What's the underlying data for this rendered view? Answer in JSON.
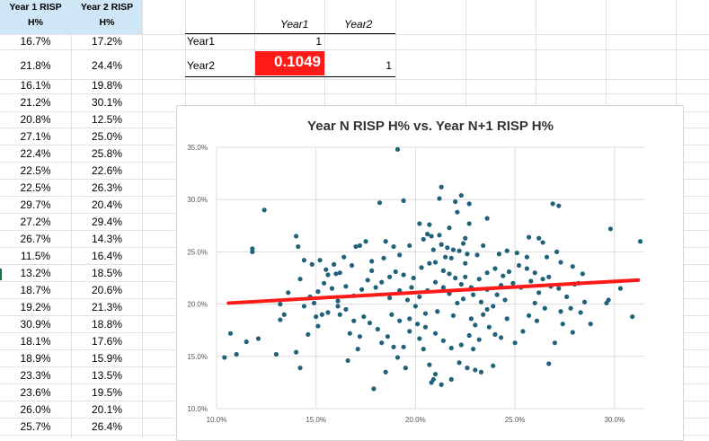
{
  "spreadsheet": {
    "headers": {
      "col_a": [
        "Year 1 RISP",
        "H%"
      ],
      "col_b": [
        "Year 2 RISP",
        "H%"
      ]
    },
    "rows": [
      [
        "16.7%",
        "17.2%"
      ],
      [
        "21.8%",
        "24.4%"
      ],
      [
        "16.1%",
        "19.8%"
      ],
      [
        "21.2%",
        "30.1%"
      ],
      [
        "20.8%",
        "12.5%"
      ],
      [
        "27.1%",
        "25.0%"
      ],
      [
        "22.4%",
        "25.8%"
      ],
      [
        "22.5%",
        "22.6%"
      ],
      [
        "22.5%",
        "26.3%"
      ],
      [
        "29.7%",
        "20.4%"
      ],
      [
        "27.2%",
        "29.4%"
      ],
      [
        "26.7%",
        "14.3%"
      ],
      [
        "11.5%",
        "16.4%"
      ],
      [
        "13.2%",
        "18.5%"
      ],
      [
        "18.7%",
        "20.6%"
      ],
      [
        "19.2%",
        "21.3%"
      ],
      [
        "30.9%",
        "18.8%"
      ],
      [
        "18.1%",
        "17.6%"
      ],
      [
        "18.9%",
        "15.9%"
      ],
      [
        "23.3%",
        "13.5%"
      ],
      [
        "23.6%",
        "19.5%"
      ],
      [
        "26.0%",
        "20.1%"
      ],
      [
        "25.7%",
        "26.4%"
      ]
    ]
  },
  "correlation_table": {
    "col_headers": [
      "Year1",
      "Year2"
    ],
    "row_labels": [
      "Year1",
      "Year2"
    ],
    "year1_year1": "1",
    "year2_year1": "0.1049",
    "year2_year2": "1"
  },
  "chart_data": {
    "type": "scatter",
    "title": "Year N RISP H% vs. Year N+1 RISP H%",
    "xlabel": "",
    "ylabel": "",
    "xlim": [
      10.0,
      31.5
    ],
    "ylim": [
      10.0,
      35.0
    ],
    "x_ticks": [
      "10.0%",
      "15.0%",
      "20.0%",
      "25.0%",
      "30.0%"
    ],
    "y_ticks": [
      "10.0%",
      "15.0%",
      "20.0%",
      "25.0%",
      "30.0%",
      "35.0%"
    ],
    "grid": true,
    "point_color": "#20627a",
    "trendline": {
      "x": [
        10.6,
        31.2
      ],
      "y": [
        20.1,
        22.3
      ],
      "color": "#ff1a1a"
    },
    "points": [
      [
        16.7,
        17.2
      ],
      [
        21.8,
        24.4
      ],
      [
        16.1,
        19.8
      ],
      [
        21.2,
        30.1
      ],
      [
        20.8,
        12.5
      ],
      [
        27.1,
        25.0
      ],
      [
        22.4,
        25.8
      ],
      [
        22.5,
        22.6
      ],
      [
        22.5,
        26.3
      ],
      [
        29.7,
        20.4
      ],
      [
        27.2,
        29.4
      ],
      [
        26.7,
        14.3
      ],
      [
        11.5,
        16.4
      ],
      [
        13.2,
        18.5
      ],
      [
        18.7,
        20.6
      ],
      [
        19.2,
        21.3
      ],
      [
        30.9,
        18.8
      ],
      [
        18.1,
        17.6
      ],
      [
        18.9,
        15.9
      ],
      [
        23.3,
        13.5
      ],
      [
        23.6,
        19.5
      ],
      [
        26.0,
        20.1
      ],
      [
        25.7,
        26.4
      ],
      [
        19.1,
        34.8
      ],
      [
        21.3,
        31.2
      ],
      [
        22.3,
        30.4
      ],
      [
        12.4,
        29.0
      ],
      [
        14.0,
        26.5
      ],
      [
        11.8,
        25.3
      ],
      [
        11.8,
        25.0
      ],
      [
        31.3,
        26.0
      ],
      [
        29.8,
        27.2
      ],
      [
        26.9,
        29.6
      ],
      [
        22.7,
        29.6
      ],
      [
        18.2,
        29.7
      ],
      [
        19.4,
        29.9
      ],
      [
        22.0,
        29.8
      ],
      [
        23.6,
        28.2
      ],
      [
        22.1,
        28.8
      ],
      [
        22.7,
        27.7
      ],
      [
        21.7,
        27.3
      ],
      [
        20.7,
        27.6
      ],
      [
        20.2,
        27.7
      ],
      [
        20.4,
        26.2
      ],
      [
        20.6,
        26.7
      ],
      [
        21.2,
        26.6
      ],
      [
        20.8,
        26.5
      ],
      [
        21.3,
        25.7
      ],
      [
        21.6,
        25.4
      ],
      [
        21.9,
        25.2
      ],
      [
        22.2,
        25.1
      ],
      [
        22.6,
        24.8
      ],
      [
        23.1,
        24.7
      ],
      [
        23.4,
        25.6
      ],
      [
        24.2,
        24.8
      ],
      [
        24.6,
        25.1
      ],
      [
        25.1,
        24.9
      ],
      [
        25.6,
        24.5
      ],
      [
        26.2,
        26.3
      ],
      [
        26.4,
        25.9
      ],
      [
        26.6,
        24.5
      ],
      [
        27.3,
        24.0
      ],
      [
        27.9,
        23.6
      ],
      [
        28.4,
        22.9
      ],
      [
        28.2,
        22.0
      ],
      [
        18.5,
        26.0
      ],
      [
        18.9,
        25.5
      ],
      [
        19.2,
        24.7
      ],
      [
        18.4,
        24.4
      ],
      [
        17.8,
        24.1
      ],
      [
        17.2,
        25.6
      ],
      [
        17.0,
        25.5
      ],
      [
        16.4,
        24.5
      ],
      [
        16.8,
        23.7
      ],
      [
        15.9,
        23.8
      ],
      [
        15.5,
        23.3
      ],
      [
        15.2,
        24.2
      ],
      [
        14.8,
        23.8
      ],
      [
        14.4,
        24.2
      ],
      [
        14.1,
        25.5
      ],
      [
        13.6,
        21.1
      ],
      [
        13.2,
        20.0
      ],
      [
        13.4,
        19.0
      ],
      [
        12.1,
        16.7
      ],
      [
        13.0,
        15.2
      ],
      [
        14.0,
        15.4
      ],
      [
        14.2,
        13.9
      ],
      [
        14.6,
        17.1
      ],
      [
        15.1,
        17.9
      ],
      [
        15.0,
        18.8
      ],
      [
        15.3,
        19.0
      ],
      [
        15.6,
        19.2
      ],
      [
        16.2,
        19.0
      ],
      [
        16.5,
        19.5
      ],
      [
        16.9,
        18.4
      ],
      [
        17.4,
        18.8
      ],
      [
        17.7,
        18.2
      ],
      [
        17.2,
        16.9
      ],
      [
        16.6,
        14.6
      ],
      [
        17.1,
        15.7
      ],
      [
        18.3,
        16.3
      ],
      [
        18.6,
        16.9
      ],
      [
        19.1,
        14.9
      ],
      [
        19.4,
        15.9
      ],
      [
        19.7,
        17.4
      ],
      [
        20.2,
        16.7
      ],
      [
        20.4,
        15.7
      ],
      [
        20.7,
        14.2
      ],
      [
        21.0,
        13.3
      ],
      [
        21.3,
        12.3
      ],
      [
        21.8,
        12.8
      ],
      [
        22.2,
        14.4
      ],
      [
        22.6,
        13.9
      ],
      [
        22.9,
        15.7
      ],
      [
        23.2,
        16.6
      ],
      [
        23.7,
        17.8
      ],
      [
        24.0,
        17.1
      ],
      [
        24.3,
        16.8
      ],
      [
        24.6,
        18.6
      ],
      [
        25.0,
        16.3
      ],
      [
        25.4,
        17.4
      ],
      [
        25.7,
        18.9
      ],
      [
        26.1,
        18.4
      ],
      [
        26.5,
        19.6
      ],
      [
        27.0,
        16.3
      ],
      [
        27.4,
        18.1
      ],
      [
        27.9,
        17.3
      ],
      [
        28.3,
        19.2
      ],
      [
        28.8,
        18.1
      ],
      [
        29.6,
        20.1
      ],
      [
        30.3,
        21.5
      ],
      [
        10.7,
        17.2
      ],
      [
        11.0,
        15.2
      ],
      [
        10.4,
        14.9
      ],
      [
        17.9,
        11.9
      ],
      [
        18.5,
        13.5
      ],
      [
        19.5,
        13.9
      ],
      [
        20.9,
        12.8
      ],
      [
        23.0,
        13.7
      ],
      [
        23.9,
        14.1
      ],
      [
        22.8,
        18.6
      ],
      [
        21.9,
        18.9
      ],
      [
        21.1,
        19.3
      ],
      [
        20.5,
        19.1
      ],
      [
        20.0,
        19.8
      ],
      [
        19.6,
        20.4
      ],
      [
        19.8,
        21.6
      ],
      [
        19.9,
        22.5
      ],
      [
        20.3,
        23.5
      ],
      [
        20.7,
        23.9
      ],
      [
        21.0,
        24.0
      ],
      [
        21.4,
        23.2
      ],
      [
        21.7,
        22.9
      ],
      [
        22.0,
        22.5
      ],
      [
        22.3,
        21.9
      ],
      [
        22.8,
        21.6
      ],
      [
        23.2,
        22.4
      ],
      [
        23.6,
        23.0
      ],
      [
        24.0,
        23.4
      ],
      [
        24.4,
        22.7
      ],
      [
        24.9,
        22.0
      ],
      [
        25.3,
        21.6
      ],
      [
        25.8,
        22.2
      ],
      [
        26.2,
        21.1
      ],
      [
        26.7,
        22.6
      ],
      [
        27.2,
        21.5
      ],
      [
        27.6,
        20.7
      ],
      [
        28.0,
        21.9
      ],
      [
        24.5,
        20.4
      ],
      [
        24.1,
        20.9
      ],
      [
        23.6,
        21.4
      ],
      [
        23.3,
        20.2
      ],
      [
        22.9,
        20.9
      ],
      [
        22.4,
        20.5
      ],
      [
        22.1,
        20.1
      ],
      [
        21.7,
        21.0
      ],
      [
        21.4,
        21.6
      ],
      [
        21.0,
        22.1
      ],
      [
        20.6,
        21.3
      ],
      [
        20.2,
        20.7
      ],
      [
        19.4,
        22.8
      ],
      [
        19.0,
        23.1
      ],
      [
        18.7,
        22.6
      ],
      [
        18.3,
        22.1
      ],
      [
        18.0,
        21.6
      ],
      [
        17.6,
        22.3
      ],
      [
        17.3,
        21.4
      ],
      [
        16.9,
        20.8
      ],
      [
        16.5,
        21.7
      ],
      [
        16.1,
        20.3
      ],
      [
        15.8,
        21.5
      ],
      [
        15.4,
        22.0
      ],
      [
        15.1,
        21.2
      ],
      [
        14.7,
        20.7
      ],
      [
        14.4,
        19.8
      ],
      [
        14.9,
        20.1
      ],
      [
        16.0,
        22.9
      ],
      [
        17.8,
        23.2
      ],
      [
        18.8,
        19.0
      ],
      [
        19.2,
        18.4
      ],
      [
        19.7,
        18.6
      ],
      [
        20.1,
        18.1
      ],
      [
        20.5,
        17.8
      ],
      [
        21.0,
        17.2
      ],
      [
        21.4,
        16.5
      ],
      [
        21.8,
        15.8
      ],
      [
        22.3,
        16.1
      ],
      [
        22.7,
        17.0
      ],
      [
        23.0,
        18.0
      ],
      [
        23.4,
        19.0
      ],
      [
        23.9,
        19.8
      ],
      [
        24.3,
        21.8
      ],
      [
        24.7,
        23.1
      ],
      [
        25.2,
        23.7
      ],
      [
        25.6,
        23.4
      ],
      [
        26.0,
        23.0
      ],
      [
        26.4,
        22.4
      ],
      [
        26.8,
        21.7
      ],
      [
        27.3,
        19.3
      ],
      [
        27.8,
        19.6
      ],
      [
        28.5,
        20.2
      ],
      [
        22.5,
        23.9
      ],
      [
        21.5,
        24.5
      ],
      [
        20.9,
        25.2
      ],
      [
        19.7,
        25.6
      ],
      [
        17.5,
        26.0
      ],
      [
        16.2,
        23.0
      ],
      [
        15.6,
        22.8
      ],
      [
        14.2,
        22.4
      ]
    ]
  }
}
